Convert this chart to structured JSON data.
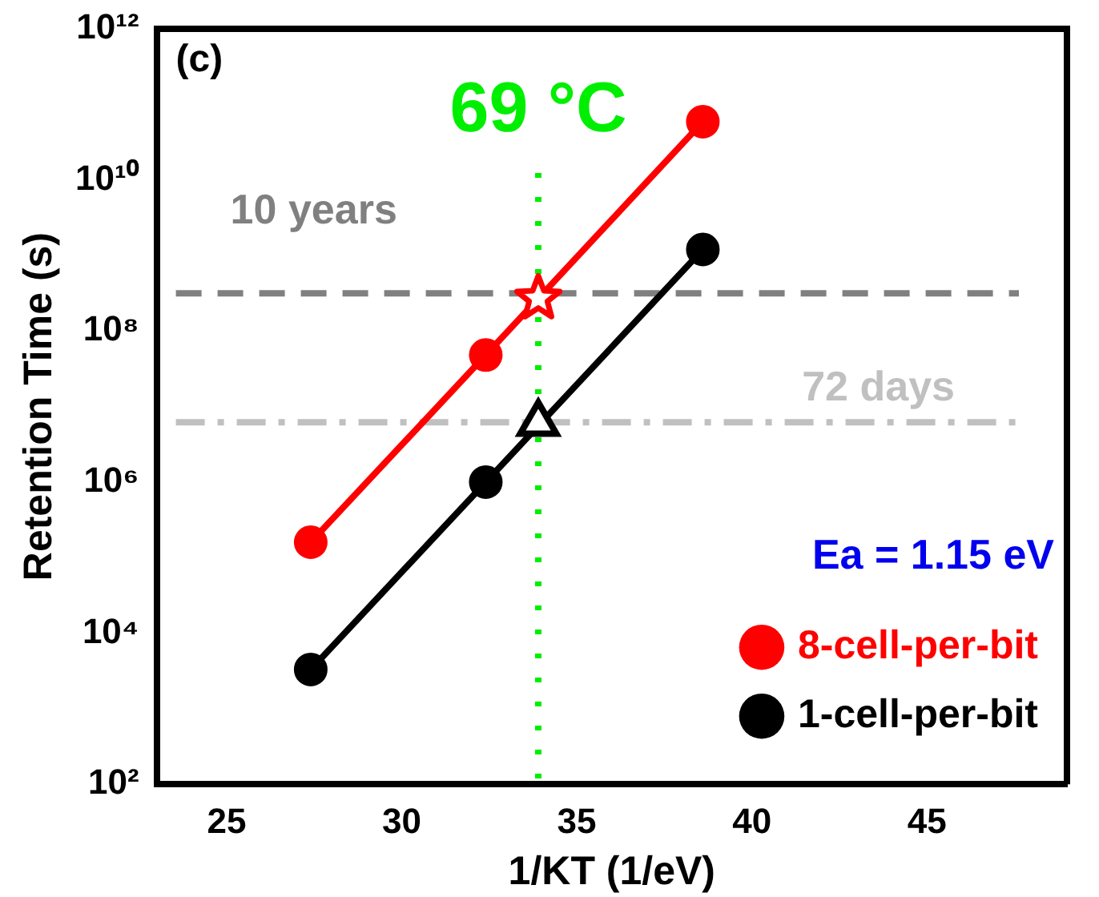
{
  "chart_data": {
    "type": "line",
    "xlabel": "1/KT (1/eV)",
    "ylabel": "Retention Time (s)",
    "x": [
      27.4,
      32.4,
      38.6
    ],
    "series": [
      {
        "name": "8-cell-per-bit",
        "color": "#ff0000",
        "values": [
          160000,
          48000000,
          59000000000
        ]
      },
      {
        "name": "1-cell-per-bit",
        "color": "#000000",
        "values": [
          3300,
          1000000,
          1200000000
        ]
      },
      {
        "type": "scatter",
        "color": "#ff0000",
        "x": [
          33.9
        ],
        "values": [
          270000000
        ],
        "marker": "star"
      },
      {
        "type": "scatter",
        "color": "#000000",
        "x": [
          33.9
        ],
        "values": [
          6000000
        ],
        "marker": "triangle"
      }
    ],
    "marker": "circle",
    "line_style": "solid",
    "log": "y",
    "xlim": [
      23,
      49
    ],
    "xticks": [
      25,
      30,
      35,
      40,
      45
    ],
    "ylim": [
      100,
      1000000000000
    ],
    "yticks": [
      {
        "value": 100,
        "label": "10²"
      },
      {
        "value": 10000,
        "label": "10⁴"
      },
      {
        "value": 1000000,
        "label": "10⁶"
      },
      {
        "value": 100000000,
        "label": "10⁸"
      },
      {
        "value": 10000000000,
        "label": "10¹⁰"
      },
      {
        "value": 1000000000000,
        "label": "10¹²"
      }
    ],
    "ref_lines": [
      {
        "axis": "y",
        "value": 315000000,
        "label": "10 years",
        "color": "#808080",
        "line_style": "dashed"
      },
      {
        "axis": "y",
        "value": 6200000,
        "label": "72 days",
        "color": "#c0c0c0",
        "line_style": "dashdot"
      },
      {
        "axis": "x",
        "value": 33.9,
        "label": "69 °C",
        "color": "#00ee00",
        "line_style": "dotted"
      }
    ],
    "annotations": [
      "(c)",
      "Ea = 1.15 eV"
    ],
    "legend": "bottom right",
    "grid": false
  }
}
